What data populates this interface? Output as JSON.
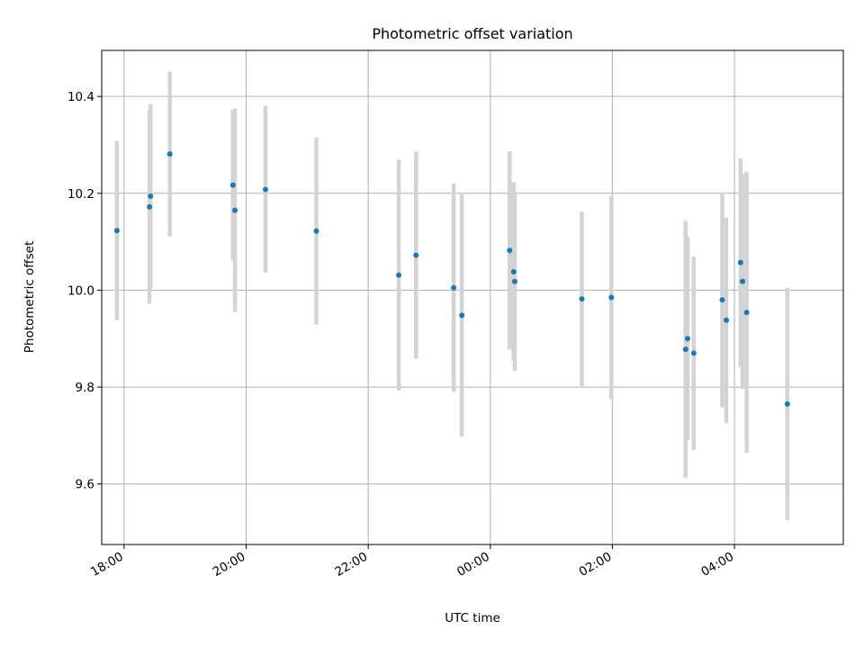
{
  "chart_data": {
    "type": "scatter",
    "title": "Photometric offset variation",
    "xlabel": "UTC time",
    "ylabel": "Photometric offset",
    "xlim": [
      "17:38",
      "05:47"
    ],
    "ylim": [
      9.475,
      10.495
    ],
    "x_ticks": [
      "18:00",
      "20:00",
      "22:00",
      "00:00",
      "02:00",
      "04:00"
    ],
    "y_ticks": [
      9.6,
      9.8,
      10.0,
      10.2,
      10.4
    ],
    "y_tick_labels": [
      "9.6",
      "9.8",
      "10.0",
      "10.2",
      "10.4"
    ],
    "grid": true,
    "colors": {
      "point": "#1f77b4",
      "errorbar": "#d3d3d3",
      "grid": "#b0b0b0"
    },
    "points": [
      {
        "t": "17:53",
        "y": 10.123,
        "err": 0.185
      },
      {
        "t": "18:25",
        "y": 10.172,
        "err": 0.2
      },
      {
        "t": "18:26",
        "y": 10.194,
        "err": 0.19
      },
      {
        "t": "18:45",
        "y": 10.281,
        "err": 0.17
      },
      {
        "t": "19:47",
        "y": 10.217,
        "err": 0.155
      },
      {
        "t": "19:49",
        "y": 10.165,
        "err": 0.21
      },
      {
        "t": "20:19",
        "y": 10.208,
        "err": 0.172
      },
      {
        "t": "21:09",
        "y": 10.122,
        "err": 0.193
      },
      {
        "t": "22:30",
        "y": 10.031,
        "err": 0.238
      },
      {
        "t": "22:47",
        "y": 10.072,
        "err": 0.214
      },
      {
        "t": "23:24",
        "y": 10.005,
        "err": 0.215
      },
      {
        "t": "23:32",
        "y": 9.948,
        "err": 0.25
      },
      {
        "t": "00:19",
        "y": 10.082,
        "err": 0.205
      },
      {
        "t": "00:23",
        "y": 10.038,
        "err": 0.185
      },
      {
        "t": "00:24",
        "y": 10.018,
        "err": 0.185
      },
      {
        "t": "01:30",
        "y": 9.982,
        "err": 0.18
      },
      {
        "t": "01:59",
        "y": 9.985,
        "err": 0.21
      },
      {
        "t": "03:12",
        "y": 9.878,
        "err": 0.265
      },
      {
        "t": "03:14",
        "y": 9.9,
        "err": 0.21
      },
      {
        "t": "03:20",
        "y": 9.87,
        "err": 0.2
      },
      {
        "t": "03:48",
        "y": 9.98,
        "err": 0.222
      },
      {
        "t": "03:52",
        "y": 9.938,
        "err": 0.212
      },
      {
        "t": "04:06",
        "y": 10.057,
        "err": 0.215
      },
      {
        "t": "04:08",
        "y": 10.018,
        "err": 0.222
      },
      {
        "t": "04:12",
        "y": 9.954,
        "err": 0.29
      },
      {
        "t": "04:52",
        "y": 9.765,
        "err": 0.24
      }
    ]
  }
}
